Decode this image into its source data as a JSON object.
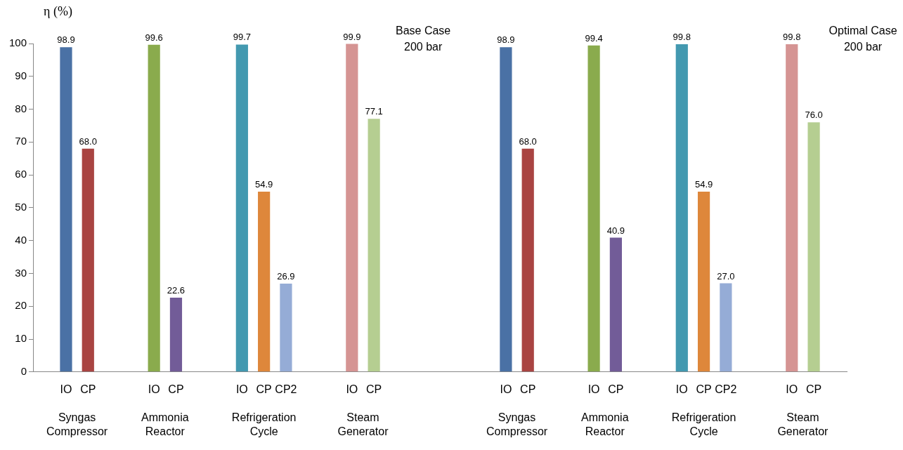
{
  "chart_data": {
    "type": "bar",
    "ylabel": "η (%)",
    "categories": [
      null,
      "IO",
      "CP",
      null,
      null,
      "IO",
      "CP",
      null,
      null,
      "IO",
      "CP",
      "CP2",
      null,
      null,
      "IO",
      "CP",
      null,
      null,
      null,
      null,
      null,
      "IO",
      "CP",
      null,
      null,
      "IO",
      "CP",
      null,
      null,
      "IO",
      "CP",
      "CP2",
      null,
      null,
      "IO",
      "CP",
      null
    ],
    "values": [
      null,
      98.9,
      68.0,
      null,
      null,
      99.6,
      22.6,
      null,
      null,
      99.7,
      54.9,
      26.9,
      null,
      null,
      99.9,
      77.1,
      null,
      null,
      null,
      null,
      null,
      98.9,
      68.0,
      null,
      null,
      99.4,
      40.9,
      null,
      null,
      99.8,
      54.9,
      27.0,
      null,
      null,
      99.8,
      76.0,
      null
    ],
    "value_labels": [
      null,
      "98.9",
      "68.0",
      null,
      null,
      "99.6",
      "22.6",
      null,
      null,
      "99.7",
      "54.9",
      "26.9",
      null,
      null,
      "99.9",
      "77.1",
      null,
      null,
      null,
      null,
      null,
      "98.9",
      "68.0",
      null,
      null,
      "99.4",
      "40.9",
      null,
      null,
      "99.8",
      "54.9",
      "27.0",
      null,
      null,
      "99.8",
      "76.0",
      null
    ],
    "colors": [
      null,
      "#4a71a5",
      "#a94442",
      null,
      null,
      "#8aab4d",
      "#725c98",
      null,
      null,
      "#4399b0",
      "#de873b",
      "#95acd6",
      null,
      null,
      "#d59493",
      "#b5ce91",
      null,
      null,
      null,
      null,
      null,
      "#4a71a5",
      "#a94442",
      null,
      null,
      "#8aab4d",
      "#725c98",
      null,
      null,
      "#4399b0",
      "#de873b",
      "#95acd6",
      null,
      null,
      "#d59493",
      "#b5ce91",
      null
    ],
    "ylim": [
      0,
      100
    ],
    "yticks": [
      0,
      10,
      20,
      30,
      40,
      50,
      60,
      70,
      80,
      90,
      100
    ],
    "grid": false,
    "annotations": [
      "Syngas Compressor",
      "Ammonia Reactor",
      "Refrigeration Cycle",
      "Steam Generator",
      "Syngas Compressor",
      "Ammonia Reactor",
      "Refrigeration Cycle",
      "Steam Generator",
      "Base Case 200 bar",
      "Optimal Case 200 bar"
    ]
  }
}
